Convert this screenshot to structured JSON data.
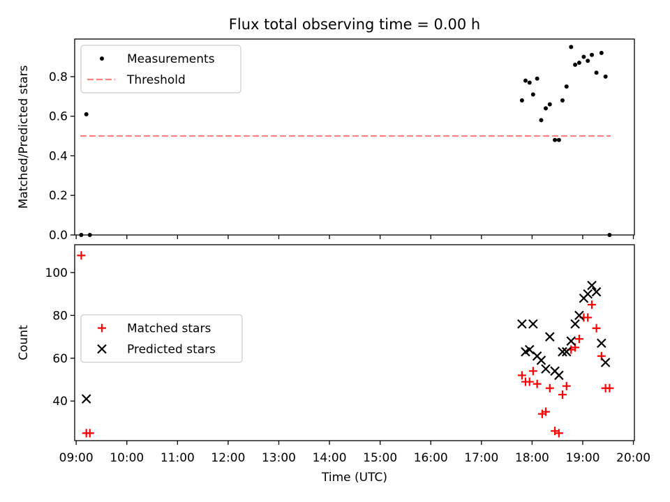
{
  "chart_data": [
    {
      "type": "scatter",
      "title": "Flux total observing time = 0.00 h",
      "xlabel": "",
      "ylabel": "Matched/Predicted stars",
      "xlim": [
        8.97,
        20.02
      ],
      "ylim": [
        0,
        0.99
      ],
      "yticks": [
        0.0,
        0.2,
        0.4,
        0.6,
        0.8
      ],
      "ytick_labels": [
        "0.0",
        "0.2",
        "0.4",
        "0.6",
        "0.8"
      ],
      "legend_position": "upper left",
      "grid": false,
      "series": [
        {
          "name": "Measurements",
          "marker": "dot",
          "color": "#000000",
          "points": [
            [
              9.1,
              0.0
            ],
            [
              9.2,
              0.61
            ],
            [
              9.27,
              0.0
            ],
            [
              17.8,
              0.68
            ],
            [
              17.87,
              0.78
            ],
            [
              17.95,
              0.77
            ],
            [
              18.02,
              0.71
            ],
            [
              18.1,
              0.79
            ],
            [
              18.18,
              0.58
            ],
            [
              18.27,
              0.64
            ],
            [
              18.35,
              0.66
            ],
            [
              18.45,
              0.48
            ],
            [
              18.53,
              0.48
            ],
            [
              18.6,
              0.68
            ],
            [
              18.68,
              0.75
            ],
            [
              18.77,
              0.95
            ],
            [
              18.85,
              0.86
            ],
            [
              18.93,
              0.87
            ],
            [
              19.02,
              0.9
            ],
            [
              19.1,
              0.88
            ],
            [
              19.18,
              0.91
            ],
            [
              19.27,
              0.82
            ],
            [
              19.37,
              0.92
            ],
            [
              19.45,
              0.8
            ],
            [
              19.53,
              0.0
            ]
          ]
        },
        {
          "name": "Threshold",
          "line_style": "dashed",
          "color": "#ff7f7f",
          "points": [
            [
              9.08,
              0.5
            ],
            [
              19.55,
              0.5
            ]
          ]
        }
      ]
    },
    {
      "type": "scatter",
      "title": "",
      "xlabel": "Time (UTC)",
      "ylabel": "Count",
      "xlim": [
        8.97,
        20.02
      ],
      "ylim": [
        21.5,
        113
      ],
      "xticks": [
        9,
        10,
        11,
        12,
        13,
        14,
        15,
        16,
        17,
        18,
        19,
        20
      ],
      "xtick_labels": [
        "09:00",
        "10:00",
        "11:00",
        "12:00",
        "13:00",
        "14:00",
        "15:00",
        "16:00",
        "17:00",
        "18:00",
        "19:00",
        "20:00"
      ],
      "yticks": [
        40,
        60,
        80,
        100
      ],
      "ytick_labels": [
        "40",
        "60",
        "80",
        "100"
      ],
      "legend_position": "center left",
      "grid": false,
      "series": [
        {
          "name": "Matched stars",
          "marker": "plus",
          "color": "#ff0000",
          "points": [
            [
              9.1,
              108
            ],
            [
              9.2,
              25
            ],
            [
              9.27,
              25
            ],
            [
              17.8,
              52
            ],
            [
              17.87,
              49
            ],
            [
              17.95,
              49
            ],
            [
              18.02,
              54
            ],
            [
              18.1,
              48
            ],
            [
              18.2,
              34
            ],
            [
              18.27,
              35
            ],
            [
              18.35,
              46
            ],
            [
              18.45,
              26
            ],
            [
              18.53,
              25
            ],
            [
              18.6,
              43
            ],
            [
              18.68,
              47
            ],
            [
              18.77,
              64
            ],
            [
              18.85,
              65
            ],
            [
              18.93,
              69
            ],
            [
              19.02,
              79
            ],
            [
              19.1,
              79
            ],
            [
              19.18,
              85
            ],
            [
              19.27,
              74
            ],
            [
              19.37,
              61
            ],
            [
              19.45,
              46
            ],
            [
              19.53,
              46
            ]
          ]
        },
        {
          "name": "Predicted stars",
          "marker": "x",
          "color": "#000000",
          "points": [
            [
              9.2,
              41
            ],
            [
              17.8,
              76
            ],
            [
              17.87,
              63
            ],
            [
              17.95,
              64
            ],
            [
              18.02,
              76
            ],
            [
              18.1,
              61
            ],
            [
              18.18,
              59
            ],
            [
              18.27,
              55
            ],
            [
              18.35,
              70
            ],
            [
              18.45,
              54
            ],
            [
              18.53,
              52
            ],
            [
              18.6,
              63
            ],
            [
              18.68,
              63
            ],
            [
              18.77,
              68
            ],
            [
              18.85,
              76
            ],
            [
              18.93,
              80
            ],
            [
              19.02,
              88
            ],
            [
              19.1,
              90
            ],
            [
              19.18,
              94
            ],
            [
              19.27,
              91
            ],
            [
              19.37,
              67
            ],
            [
              19.45,
              58
            ]
          ]
        }
      ]
    }
  ]
}
